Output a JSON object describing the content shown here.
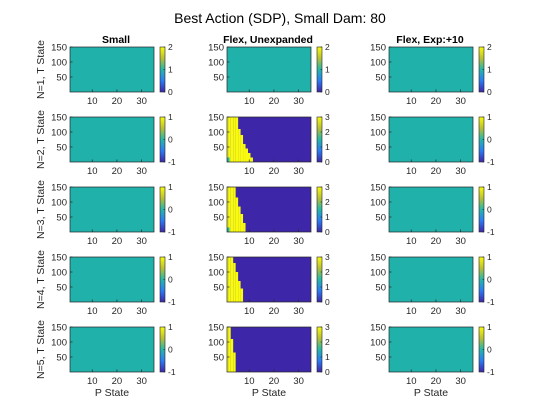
{
  "figure": {
    "title": "Best Action (SDP), Small Dam: 80",
    "column_titles": [
      "Small",
      "Flex, Unexpanded",
      "Flex, Exp:+10"
    ],
    "row_labels": [
      "N=1, T State",
      "N=2, T State",
      "N=3, T State",
      "N=4, T State",
      "N=5, T State"
    ],
    "xlabel": "P State",
    "colors": {
      "teal": "#20b2aa",
      "yellow": "#f9fb0e",
      "purple": "#3e26a8",
      "colorbar_top": "#f9fb0e",
      "colorbar_mid": "#24b7aa",
      "colorbar_bottom": "#3e26a8"
    }
  },
  "chart_data": [
    {
      "type": "heatmap",
      "row": 1,
      "col": 1,
      "xlabel": "",
      "ylabel": "N=1, T State",
      "xlim": [
        1,
        35
      ],
      "ylim": [
        0,
        150
      ],
      "xticks": [
        10,
        20,
        30
      ],
      "yticks": [
        50,
        100,
        150
      ],
      "color_range": [
        0,
        2
      ],
      "colorbar_ticks": [
        0,
        1,
        2
      ],
      "value": 1,
      "boundary": []
    },
    {
      "type": "heatmap",
      "row": 1,
      "col": 2,
      "xlabel": "",
      "ylabel": "",
      "xlim": [
        1,
        35
      ],
      "ylim": [
        0,
        150
      ],
      "xticks": [
        10,
        20,
        30
      ],
      "yticks": [
        50,
        100,
        150
      ],
      "color_range": [
        0,
        2
      ],
      "colorbar_ticks": [
        0,
        1,
        2
      ],
      "value": 1,
      "boundary": []
    },
    {
      "type": "heatmap",
      "row": 1,
      "col": 3,
      "xlabel": "",
      "ylabel": "",
      "xlim": [
        1,
        35
      ],
      "ylim": [
        0,
        150
      ],
      "xticks": [
        10,
        20,
        30
      ],
      "yticks": [
        50,
        100,
        150
      ],
      "color_range": [
        0,
        2
      ],
      "colorbar_ticks": [
        0,
        1,
        2
      ],
      "value": 1,
      "boundary": []
    },
    {
      "type": "heatmap",
      "row": 2,
      "col": 1,
      "xlabel": "",
      "ylabel": "N=2, T State",
      "xlim": [
        1,
        35
      ],
      "ylim": [
        0,
        150
      ],
      "xticks": [
        10,
        20,
        30
      ],
      "yticks": [
        50,
        100,
        150
      ],
      "color_range": [
        -1,
        1
      ],
      "colorbar_ticks": [
        -1,
        0,
        1
      ],
      "value": 0,
      "boundary": []
    },
    {
      "type": "heatmap",
      "row": 2,
      "col": 2,
      "xlabel": "",
      "ylabel": "",
      "xlim": [
        1,
        35
      ],
      "ylim": [
        0,
        150
      ],
      "xticks": [
        10,
        20,
        30
      ],
      "yticks": [
        50,
        100,
        150
      ],
      "color_range": [
        0,
        3
      ],
      "colorbar_ticks": [
        0,
        1,
        2,
        3
      ],
      "value": 0,
      "boundary": [
        {
          "p": 1,
          "t": 150
        },
        {
          "p": 2,
          "t": 150
        },
        {
          "p": 3,
          "t": 150
        },
        {
          "p": 4,
          "t": 150
        },
        {
          "p": 5,
          "t": 150
        },
        {
          "p": 6,
          "t": 110
        },
        {
          "p": 7,
          "t": 90
        },
        {
          "p": 8,
          "t": 60
        },
        {
          "p": 9,
          "t": 45
        },
        {
          "p": 10,
          "t": 30
        },
        {
          "p": 11,
          "t": 15
        }
      ],
      "corner": {
        "p": 1,
        "t": 15,
        "color": "teal"
      }
    },
    {
      "type": "heatmap",
      "row": 2,
      "col": 3,
      "xlabel": "",
      "ylabel": "",
      "xlim": [
        1,
        35
      ],
      "ylim": [
        0,
        150
      ],
      "xticks": [
        10,
        20,
        30
      ],
      "yticks": [
        50,
        100,
        150
      ],
      "color_range": [
        -1,
        1
      ],
      "colorbar_ticks": [
        -1,
        0,
        1
      ],
      "value": 0,
      "boundary": []
    },
    {
      "type": "heatmap",
      "row": 3,
      "col": 1,
      "xlabel": "",
      "ylabel": "N=3, T State",
      "xlim": [
        1,
        35
      ],
      "ylim": [
        0,
        150
      ],
      "xticks": [
        10,
        20,
        30
      ],
      "yticks": [
        50,
        100,
        150
      ],
      "color_range": [
        -1,
        1
      ],
      "colorbar_ticks": [
        -1,
        0,
        1
      ],
      "value": 0,
      "boundary": []
    },
    {
      "type": "heatmap",
      "row": 3,
      "col": 2,
      "xlabel": "",
      "ylabel": "",
      "xlim": [
        1,
        35
      ],
      "ylim": [
        0,
        150
      ],
      "xticks": [
        10,
        20,
        30
      ],
      "yticks": [
        50,
        100,
        150
      ],
      "color_range": [
        0,
        3
      ],
      "colorbar_ticks": [
        0,
        1,
        2,
        3
      ],
      "value": 0,
      "boundary": [
        {
          "p": 1,
          "t": 150
        },
        {
          "p": 2,
          "t": 150
        },
        {
          "p": 3,
          "t": 150
        },
        {
          "p": 4,
          "t": 150
        },
        {
          "p": 5,
          "t": 115
        },
        {
          "p": 6,
          "t": 85
        },
        {
          "p": 7,
          "t": 60
        },
        {
          "p": 8,
          "t": 30
        }
      ],
      "corner": {
        "p": 1,
        "t": 15,
        "color": "teal"
      }
    },
    {
      "type": "heatmap",
      "row": 3,
      "col": 3,
      "xlabel": "",
      "ylabel": "",
      "xlim": [
        1,
        35
      ],
      "ylim": [
        0,
        150
      ],
      "xticks": [
        10,
        20,
        30
      ],
      "yticks": [
        50,
        100,
        150
      ],
      "color_range": [
        -1,
        1
      ],
      "colorbar_ticks": [
        -1,
        0,
        1
      ],
      "value": 0,
      "boundary": []
    },
    {
      "type": "heatmap",
      "row": 4,
      "col": 1,
      "xlabel": "",
      "ylabel": "N=4, T State",
      "xlim": [
        1,
        35
      ],
      "ylim": [
        0,
        150
      ],
      "xticks": [
        10,
        20,
        30
      ],
      "yticks": [
        50,
        100,
        150
      ],
      "color_range": [
        -1,
        1
      ],
      "colorbar_ticks": [
        -1,
        0,
        1
      ],
      "value": 0,
      "boundary": []
    },
    {
      "type": "heatmap",
      "row": 4,
      "col": 2,
      "xlabel": "",
      "ylabel": "",
      "xlim": [
        1,
        35
      ],
      "ylim": [
        0,
        150
      ],
      "xticks": [
        10,
        20,
        30
      ],
      "yticks": [
        50,
        100,
        150
      ],
      "color_range": [
        0,
        3
      ],
      "colorbar_ticks": [
        0,
        1,
        2,
        3
      ],
      "value": 0,
      "boundary": [
        {
          "p": 1,
          "t": 150
        },
        {
          "p": 2,
          "t": 150
        },
        {
          "p": 3,
          "t": 150
        },
        {
          "p": 4,
          "t": 130
        },
        {
          "p": 5,
          "t": 100
        },
        {
          "p": 6,
          "t": 70
        },
        {
          "p": 7,
          "t": 45
        }
      ],
      "corner": null
    },
    {
      "type": "heatmap",
      "row": 4,
      "col": 3,
      "xlabel": "",
      "ylabel": "",
      "xlim": [
        1,
        35
      ],
      "ylim": [
        0,
        150
      ],
      "xticks": [
        10,
        20,
        30
      ],
      "yticks": [
        50,
        100,
        150
      ],
      "color_range": [
        -1,
        1
      ],
      "colorbar_ticks": [
        -1,
        0,
        1
      ],
      "value": 0,
      "boundary": []
    },
    {
      "type": "heatmap",
      "row": 5,
      "col": 1,
      "xlabel": "P State",
      "ylabel": "N=5, T State",
      "xlim": [
        1,
        35
      ],
      "ylim": [
        0,
        150
      ],
      "xticks": [
        10,
        20,
        30
      ],
      "yticks": [
        50,
        100,
        150
      ],
      "color_range": [
        -1,
        1
      ],
      "colorbar_ticks": [
        -1,
        0,
        1
      ],
      "value": 0,
      "boundary": []
    },
    {
      "type": "heatmap",
      "row": 5,
      "col": 2,
      "xlabel": "P State",
      "ylabel": "",
      "xlim": [
        1,
        35
      ],
      "ylim": [
        0,
        150
      ],
      "xticks": [
        10,
        20,
        30
      ],
      "yticks": [
        50,
        100,
        150
      ],
      "color_range": [
        0,
        3
      ],
      "colorbar_ticks": [
        0,
        1,
        2,
        3
      ],
      "value": 0,
      "boundary": [
        {
          "p": 1,
          "t": 150
        },
        {
          "p": 2,
          "t": 150
        },
        {
          "p": 3,
          "t": 110
        },
        {
          "p": 4,
          "t": 65
        }
      ],
      "corner": null
    },
    {
      "type": "heatmap",
      "row": 5,
      "col": 3,
      "xlabel": "P State",
      "ylabel": "",
      "xlim": [
        1,
        35
      ],
      "ylim": [
        0,
        150
      ],
      "xticks": [
        10,
        20,
        30
      ],
      "yticks": [
        50,
        100,
        150
      ],
      "color_range": [
        -1,
        1
      ],
      "colorbar_ticks": [
        -1,
        0,
        1
      ],
      "value": 0,
      "boundary": []
    }
  ]
}
